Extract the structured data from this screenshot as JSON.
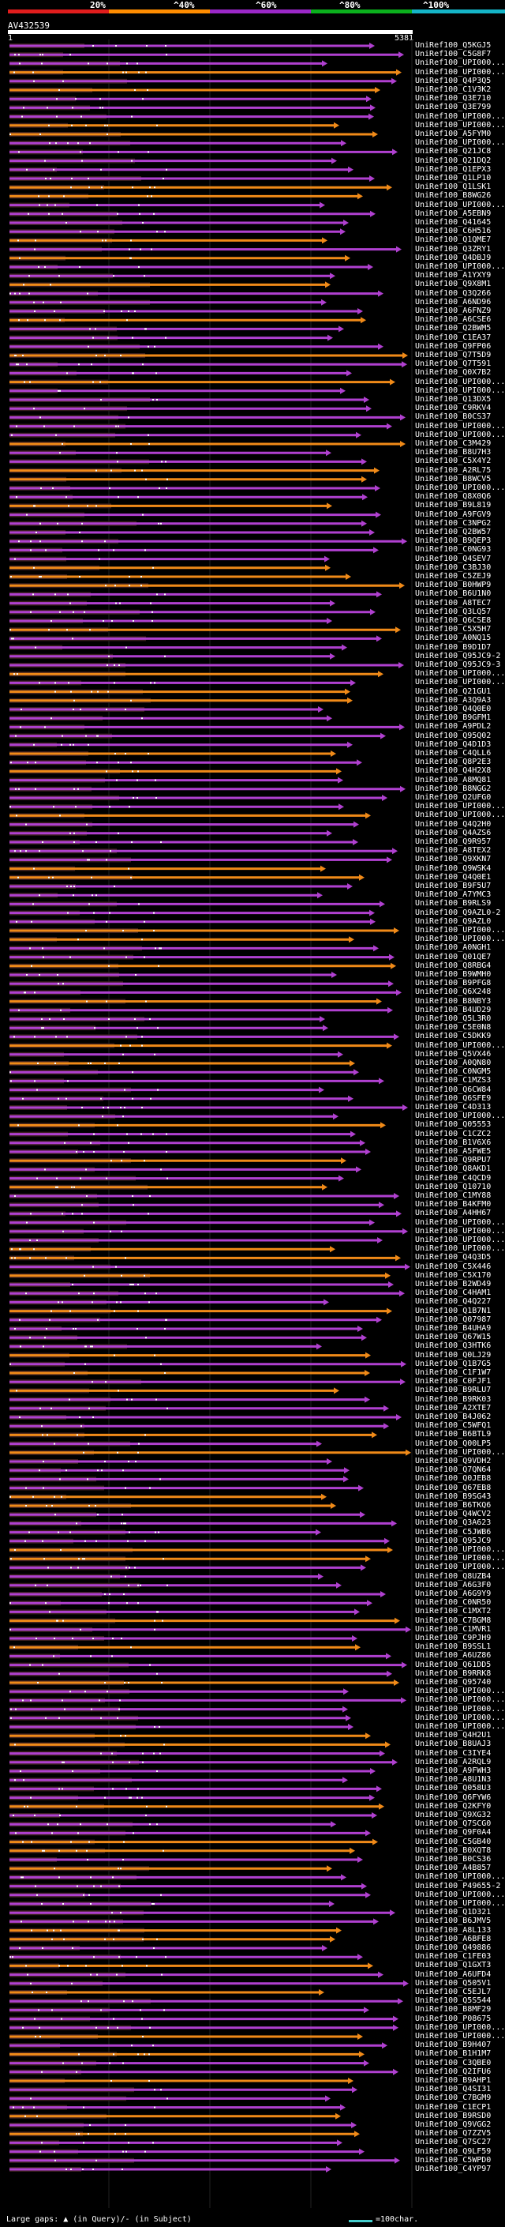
{
  "scale": {
    "ticks": [
      "20%",
      "^40%",
      "^60%",
      "^80%",
      "^100%"
    ],
    "colors": [
      "#e01d1d",
      "#ff8c00",
      "#9b28c8",
      "#0bb01d",
      "#15b5c8"
    ]
  },
  "query": {
    "name": "AV432539",
    "start": "1",
    "end": "5381"
  },
  "colors": {
    "purple": "#b040d0",
    "orange": "#f08a18",
    "dark": "#3a1f1f"
  },
  "hits": [
    "UniRef100_Q5KGJ5",
    "UniRef100_C5G8F7",
    "UniRef100_UPI000...",
    "UniRef100_UPI000...",
    "UniRef100_Q4P3Q5",
    "UniRef100_C1V3K2",
    "UniRef100_Q3E710",
    "UniRef100_Q3E799",
    "UniRef100_UPI000...",
    "UniRef100_UPI000...",
    "UniRef100_A5FYM0",
    "UniRef100_UPI000...",
    "UniRef100_Q21JC8",
    "UniRef100_Q21DQ2",
    "UniRef100_Q1EPX3",
    "UniRef100_Q1LP10",
    "UniRef100_Q1LSK1",
    "UniRef100_B8WG26",
    "UniRef100_UPI000...",
    "UniRef100_A5EBN9",
    "UniRef100_Q41645",
    "UniRef100_C6H516",
    "UniRef100_Q1QME7",
    "UniRef100_Q3ZRY1",
    "UniRef100_Q4DBJ9",
    "UniRef100_UPI000...",
    "UniRef100_A1YXY9",
    "UniRef100_Q9X8M1",
    "UniRef100_Q3Q266",
    "UniRef100_A6ND96",
    "UniRef100_A6FNZ9",
    "UniRef100_A6CSE6",
    "UniRef100_Q2BWM5",
    "UniRef100_C1EA37",
    "UniRef100_Q9FP06",
    "UniRef100_Q7T5D9",
    "UniRef100_Q7T591",
    "UniRef100_Q0X7B2",
    "UniRef100_UPI000...",
    "UniRef100_UPI000...",
    "UniRef100_Q13DX5",
    "UniRef100_C9RKV4",
    "UniRef100_B0CS37",
    "UniRef100_UPI000...",
    "UniRef100_UPI000...",
    "UniRef100_C3M429",
    "UniRef100_B8U7H3",
    "UniRef100_C5X4Y2",
    "UniRef100_A2RL75",
    "UniRef100_B8WCV5",
    "UniRef100_UPI000...",
    "UniRef100_Q8X0Q6",
    "UniRef100_B9L819",
    "UniRef100_A9FGV9",
    "UniRef100_C3NPG2",
    "UniRef100_Q2BW57",
    "UniRef100_B9QEP3",
    "UniRef100_C0NG93",
    "UniRef100_Q4SEV7",
    "UniRef100_C3BJ30",
    "UniRef100_C5ZEJ9",
    "UniRef100_B0HWP9",
    "UniRef100_B6U1N0",
    "UniRef100_A8TEC7",
    "UniRef100_Q3LQ57",
    "UniRef100_Q6CSE8",
    "UniRef100_C5X5H7",
    "UniRef100_A0NQ15",
    "UniRef100_B9D1D7",
    "UniRef100_Q95JC9-2",
    "UniRef100_Q95JC9-3",
    "UniRef100_UPI000...",
    "UniRef100_UPI000...",
    "UniRef100_Q21GU1",
    "UniRef100_A3Q9A3",
    "UniRef100_Q4Q0E0",
    "UniRef100_B9GFM1",
    "UniRef100_A9PDL2",
    "UniRef100_Q95Q02",
    "UniRef100_Q4D1D3",
    "UniRef100_C4QLL6",
    "UniRef100_Q8P2E3",
    "UniRef100_Q4H2X8",
    "UniRef100_A8MQ81",
    "UniRef100_B8NGG2",
    "UniRef100_Q2UFG0",
    "UniRef100_UPI000...",
    "UniRef100_UPI000...",
    "UniRef100_Q4Q2H0",
    "UniRef100_Q4AZS6",
    "UniRef100_Q9R957",
    "UniRef100_A8TEX2",
    "UniRef100_Q9XKN7",
    "UniRef100_Q9WSK4",
    "UniRef100_Q4Q0E1",
    "UniRef100_B9F5U7",
    "UniRef100_A7YMC3",
    "UniRef100_B9RLS9",
    "UniRef100_Q9AZL0-2",
    "UniRef100_Q9AZL0",
    "UniRef100_UPI000...",
    "UniRef100_UPI000...",
    "UniRef100_A0NGH1",
    "UniRef100_Q01QE7",
    "UniRef100_Q8RBG4",
    "UniRef100_B9WMH0",
    "UniRef100_B9PFG8",
    "UniRef100_Q6X248",
    "UniRef100_B8NBY3",
    "UniRef100_B4UD29",
    "UniRef100_Q5L3R0",
    "UniRef100_C5E0N8",
    "UniRef100_C5DKK9",
    "UniRef100_UPI000...",
    "UniRef100_Q5VX46",
    "UniRef100_A0QN80",
    "UniRef100_C0NGM5",
    "UniRef100_C1MZS3",
    "UniRef100_Q6CW84",
    "UniRef100_Q6SFE9",
    "UniRef100_C4D313",
    "UniRef100_UPI000...",
    "UniRef100_Q05553",
    "UniRef100_C1CZC2",
    "UniRef100_B1V6X6",
    "UniRef100_A5FWE5",
    "UniRef100_Q9RPU7",
    "UniRef100_Q8AKD1",
    "UniRef100_C4QCD9",
    "UniRef100_Q10710",
    "UniRef100_C1MY88",
    "UniRef100_B4KFM0",
    "UniRef100_A4HH67",
    "UniRef100_UPI000...",
    "UniRef100_UPI000...",
    "UniRef100_UPI000...",
    "UniRef100_UPI000...",
    "UniRef100_Q4Q3D5",
    "UniRef100_C5X446",
    "UniRef100_C5X170",
    "UniRef100_B2WD49",
    "UniRef100_C4HAM1",
    "UniRef100_Q4Q227",
    "UniRef100_Q1B7N1",
    "UniRef100_Q07987",
    "UniRef100_B4UHA9",
    "UniRef100_Q67W15",
    "UniRef100_Q3HTK6",
    "UniRef100_Q0LJ29",
    "UniRef100_Q1B7G5",
    "UniRef100_C1F1W7",
    "UniRef100_C0FJF1",
    "UniRef100_B9RLU7",
    "UniRef100_B9RK03",
    "UniRef100_A2XTE7",
    "UniRef100_B4J062",
    "UniRef100_C5WFQ1",
    "UniRef100_B6BTL9",
    "UniRef100_Q00LP5",
    "UniRef100_UPI000...",
    "UniRef100_Q9VDH2",
    "UniRef100_Q7QN64",
    "UniRef100_Q0JEB8",
    "UniRef100_Q67EB8",
    "UniRef100_B9SG43",
    "UniRef100_B6TKQ6",
    "UniRef100_Q4WCV2",
    "UniRef100_Q3A623",
    "UniRef100_C5JWB6",
    "UniRef100_Q95JC9",
    "UniRef100_UPI000...",
    "UniRef100_UPI000...",
    "UniRef100_UPI000...",
    "UniRef100_Q8UZB4",
    "UniRef100_A6G3F0",
    "UniRef100_A6G9Y9",
    "UniRef100_C0NR50",
    "UniRef100_C1MXT2",
    "UniRef100_C7BGM8",
    "UniRef100_C1MVR1",
    "UniRef100_C9PJH9",
    "UniRef100_B9SSL1",
    "UniRef100_A6UZ86",
    "UniRef100_Q61DD5",
    "UniRef100_B9RRK8",
    "UniRef100_Q95740",
    "UniRef100_UPI000...",
    "UniRef100_UPI000...",
    "UniRef100_UPI000...",
    "UniRef100_UPI000...",
    "UniRef100_UPI000...",
    "UniRef100_Q4H2U1",
    "UniRef100_B8UAJ3",
    "UniRef100_C3IYE4",
    "UniRef100_A2RQL9",
    "UniRef100_A9FWH3",
    "UniRef100_A8U1N3",
    "UniRef100_Q058U3",
    "UniRef100_Q6FYW6",
    "UniRef100_Q2KFY0",
    "UniRef100_Q9XG32",
    "UniRef100_Q7SCG0",
    "UniRef100_Q9F0A4",
    "UniRef100_C5GB40",
    "UniRef100_B0XQT8",
    "UniRef100_B0CS36",
    "UniRef100_A4B857",
    "UniRef100_UPI000...",
    "UniRef100_P49655-2",
    "UniRef100_UPI000...",
    "UniRef100_UPI000...",
    "UniRef100_Q1D321",
    "UniRef100_B6JMV5",
    "UniRef100_A8L133",
    "UniRef100_A6BFE8",
    "UniRef100_Q49886",
    "UniRef100_C1FE03",
    "UniRef100_Q1GXT3",
    "UniRef100_A6UFD4",
    "UniRef100_Q505V1",
    "UniRef100_C5EJL7",
    "UniRef100_Q5S544",
    "UniRef100_B8MF29",
    "UniRef100_P08675",
    "UniRef100_UPI000...",
    "UniRef100_UPI000...",
    "UniRef100_B9H407",
    "UniRef100_B1H1M7",
    "UniRef100_C3QBE0",
    "UniRef100_Q2IFU6",
    "UniRef100_B9AHP1",
    "UniRef100_Q4SI31",
    "UniRef100_C7BGM9",
    "UniRef100_C1ECP1",
    "UniRef100_B9RSD0",
    "UniRef100_Q9VGG2",
    "UniRef100_Q7ZZV5",
    "UniRef100_Q7SC27",
    "UniRef100_Q9LF59",
    "UniRef100_C5WPD0",
    "UniRef100_C4YP97"
  ],
  "footer": {
    "left": "Large gaps: ▲ (in Query)/- (in Subject)",
    "right": "=100char."
  }
}
